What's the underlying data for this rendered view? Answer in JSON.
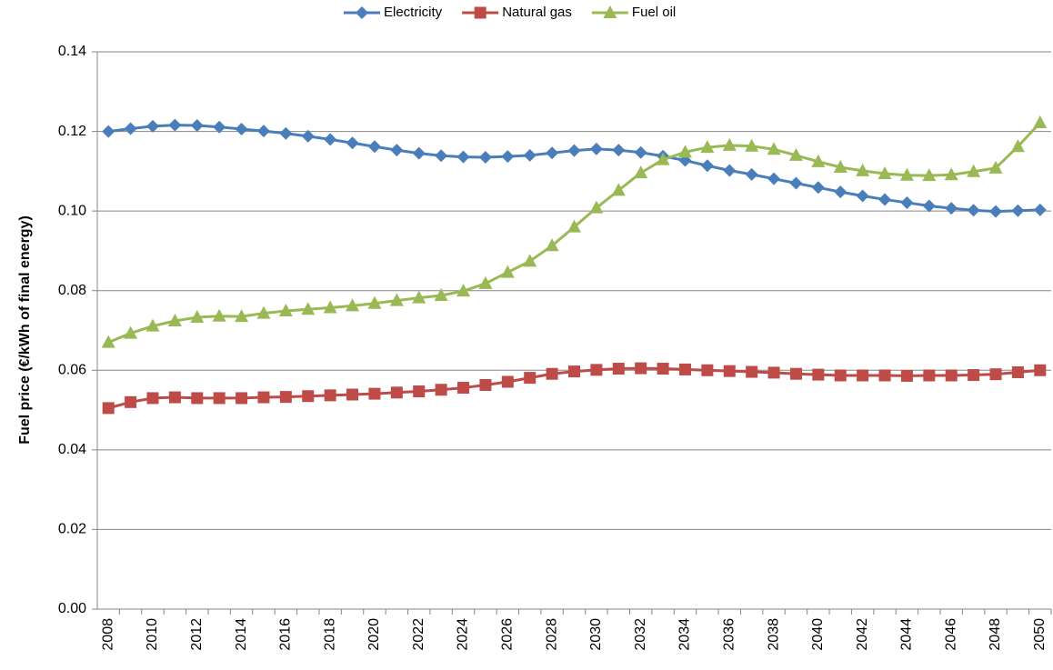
{
  "chart_data": {
    "type": "line",
    "y_label": "Fuel price (€/kWh of final energy)",
    "x": [
      2008,
      2009,
      2010,
      2011,
      2012,
      2013,
      2014,
      2015,
      2016,
      2017,
      2018,
      2019,
      2020,
      2021,
      2022,
      2023,
      2024,
      2025,
      2026,
      2027,
      2028,
      2029,
      2030,
      2031,
      2032,
      2033,
      2034,
      2035,
      2036,
      2037,
      2038,
      2039,
      2040,
      2041,
      2042,
      2043,
      2044,
      2045,
      2046,
      2047,
      2048,
      2049,
      2050
    ],
    "xlim": [
      2007.5,
      2050.5
    ],
    "xticks": [
      2008,
      2010,
      2012,
      2014,
      2016,
      2018,
      2020,
      2022,
      2024,
      2026,
      2028,
      2030,
      2032,
      2034,
      2036,
      2038,
      2040,
      2042,
      2044,
      2046,
      2048,
      2050
    ],
    "ylim": [
      0,
      0.14
    ],
    "yticks": [
      {
        "value": 0,
        "label": "0.00"
      },
      {
        "value": 0.02,
        "label": "0.02"
      },
      {
        "value": 0.04,
        "label": "0.04"
      },
      {
        "value": 0.06,
        "label": "0.06"
      },
      {
        "value": 0.08,
        "label": "0.08"
      },
      {
        "value": 0.1,
        "label": "0.10"
      },
      {
        "value": 0.12,
        "label": "0.12"
      },
      {
        "value": 0.14,
        "label": "0.14"
      }
    ],
    "grid": true,
    "legend": "top",
    "series": [
      {
        "name": "Electricity",
        "color": "#4a7ebb",
        "marker": "diamond",
        "values": [
          0.12,
          0.1207,
          0.1213,
          0.1216,
          0.1215,
          0.1211,
          0.1206,
          0.1201,
          0.1195,
          0.1188,
          0.118,
          0.1171,
          0.1162,
          0.1153,
          0.1145,
          0.1139,
          0.1136,
          0.1135,
          0.1137,
          0.114,
          0.1146,
          0.1152,
          0.1156,
          0.1153,
          0.1147,
          0.1138,
          0.1127,
          0.1114,
          0.1102,
          0.1092,
          0.1081,
          0.107,
          0.1059,
          0.1048,
          0.1038,
          0.1029,
          0.1021,
          0.1013,
          0.1007,
          0.1002,
          0.0999,
          0.1001,
          0.1003
        ]
      },
      {
        "name": "Natural gas",
        "color": "#be4b48",
        "marker": "square",
        "values": [
          0.0505,
          0.052,
          0.053,
          0.0532,
          0.053,
          0.053,
          0.053,
          0.0532,
          0.0533,
          0.0535,
          0.0537,
          0.0539,
          0.0541,
          0.0544,
          0.0547,
          0.0551,
          0.0556,
          0.0563,
          0.0571,
          0.0581,
          0.0591,
          0.0597,
          0.0601,
          0.0604,
          0.0605,
          0.0604,
          0.0602,
          0.06,
          0.0598,
          0.0596,
          0.0594,
          0.0591,
          0.0589,
          0.0587,
          0.0587,
          0.0587,
          0.0586,
          0.0587,
          0.0587,
          0.0588,
          0.059,
          0.0595,
          0.06
        ]
      },
      {
        "name": "Fuel oil",
        "color": "#98b954",
        "marker": "triangle",
        "values": [
          0.067,
          0.0693,
          0.0711,
          0.0724,
          0.0733,
          0.0736,
          0.0735,
          0.0743,
          0.0749,
          0.0753,
          0.0757,
          0.0762,
          0.0768,
          0.0775,
          0.0782,
          0.0788,
          0.0799,
          0.0818,
          0.0846,
          0.0874,
          0.0913,
          0.096,
          0.1008,
          0.1052,
          0.1096,
          0.1129,
          0.1148,
          0.116,
          0.1165,
          0.1163,
          0.1155,
          0.114,
          0.1124,
          0.111,
          0.1101,
          0.1094,
          0.109,
          0.1089,
          0.1091,
          0.1099,
          0.1108,
          0.1162,
          0.1222
        ]
      }
    ]
  }
}
